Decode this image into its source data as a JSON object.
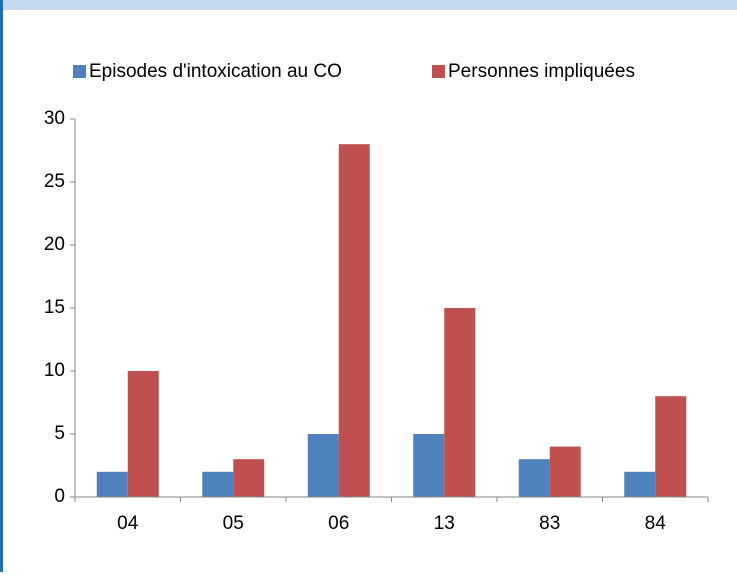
{
  "chart_data": {
    "type": "bar",
    "categories": [
      "04",
      "05",
      "06",
      "13",
      "83",
      "84"
    ],
    "series": [
      {
        "name": "Episodes d'intoxication au CO",
        "color": "#4f81bd",
        "values": [
          2,
          2,
          5,
          5,
          3,
          2
        ]
      },
      {
        "name": "Personnes impliquées",
        "color": "#c0504d",
        "values": [
          10,
          3,
          28,
          15,
          4,
          8
        ]
      }
    ],
    "ylim": [
      0,
      30
    ],
    "yticks": [
      0,
      5,
      10,
      15,
      20,
      25,
      30
    ],
    "grid": false,
    "legend": "top"
  }
}
